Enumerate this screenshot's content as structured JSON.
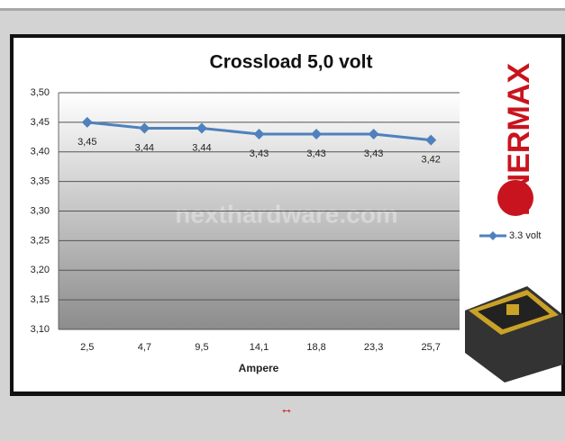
{
  "chart_data": {
    "type": "line",
    "title": "Crossload 5,0 volt",
    "x_label": "Ampere",
    "categories": [
      "2,5",
      "4,7",
      "9,5",
      "14,1",
      "18,8",
      "23,3",
      "25,7"
    ],
    "series": [
      {
        "name": "3.3 volt",
        "color": "#4f81bd",
        "values": [
          3.45,
          3.44,
          3.44,
          3.43,
          3.43,
          3.43,
          3.42
        ],
        "value_labels": [
          "3,45",
          "3,44",
          "3,44",
          "3,43",
          "3,43",
          "3,43",
          "3,42"
        ]
      }
    ],
    "ylim": [
      3.1,
      3.5
    ],
    "yticks": [
      {
        "value": 3.1,
        "label": "3,10"
      },
      {
        "value": 3.15,
        "label": "3,15"
      },
      {
        "value": 3.2,
        "label": "3,20"
      },
      {
        "value": 3.25,
        "label": "3,25"
      },
      {
        "value": 3.3,
        "label": "3,30"
      },
      {
        "value": 3.35,
        "label": "3,35"
      },
      {
        "value": 3.4,
        "label": "3,40"
      },
      {
        "value": 3.45,
        "label": "3,45"
      },
      {
        "value": 3.5,
        "label": "3,50"
      }
    ],
    "grid": true,
    "legend": "right",
    "watermark": "nexthardware.com",
    "brand": "ENERMAX"
  },
  "footer": {
    "symbol": "↔"
  }
}
